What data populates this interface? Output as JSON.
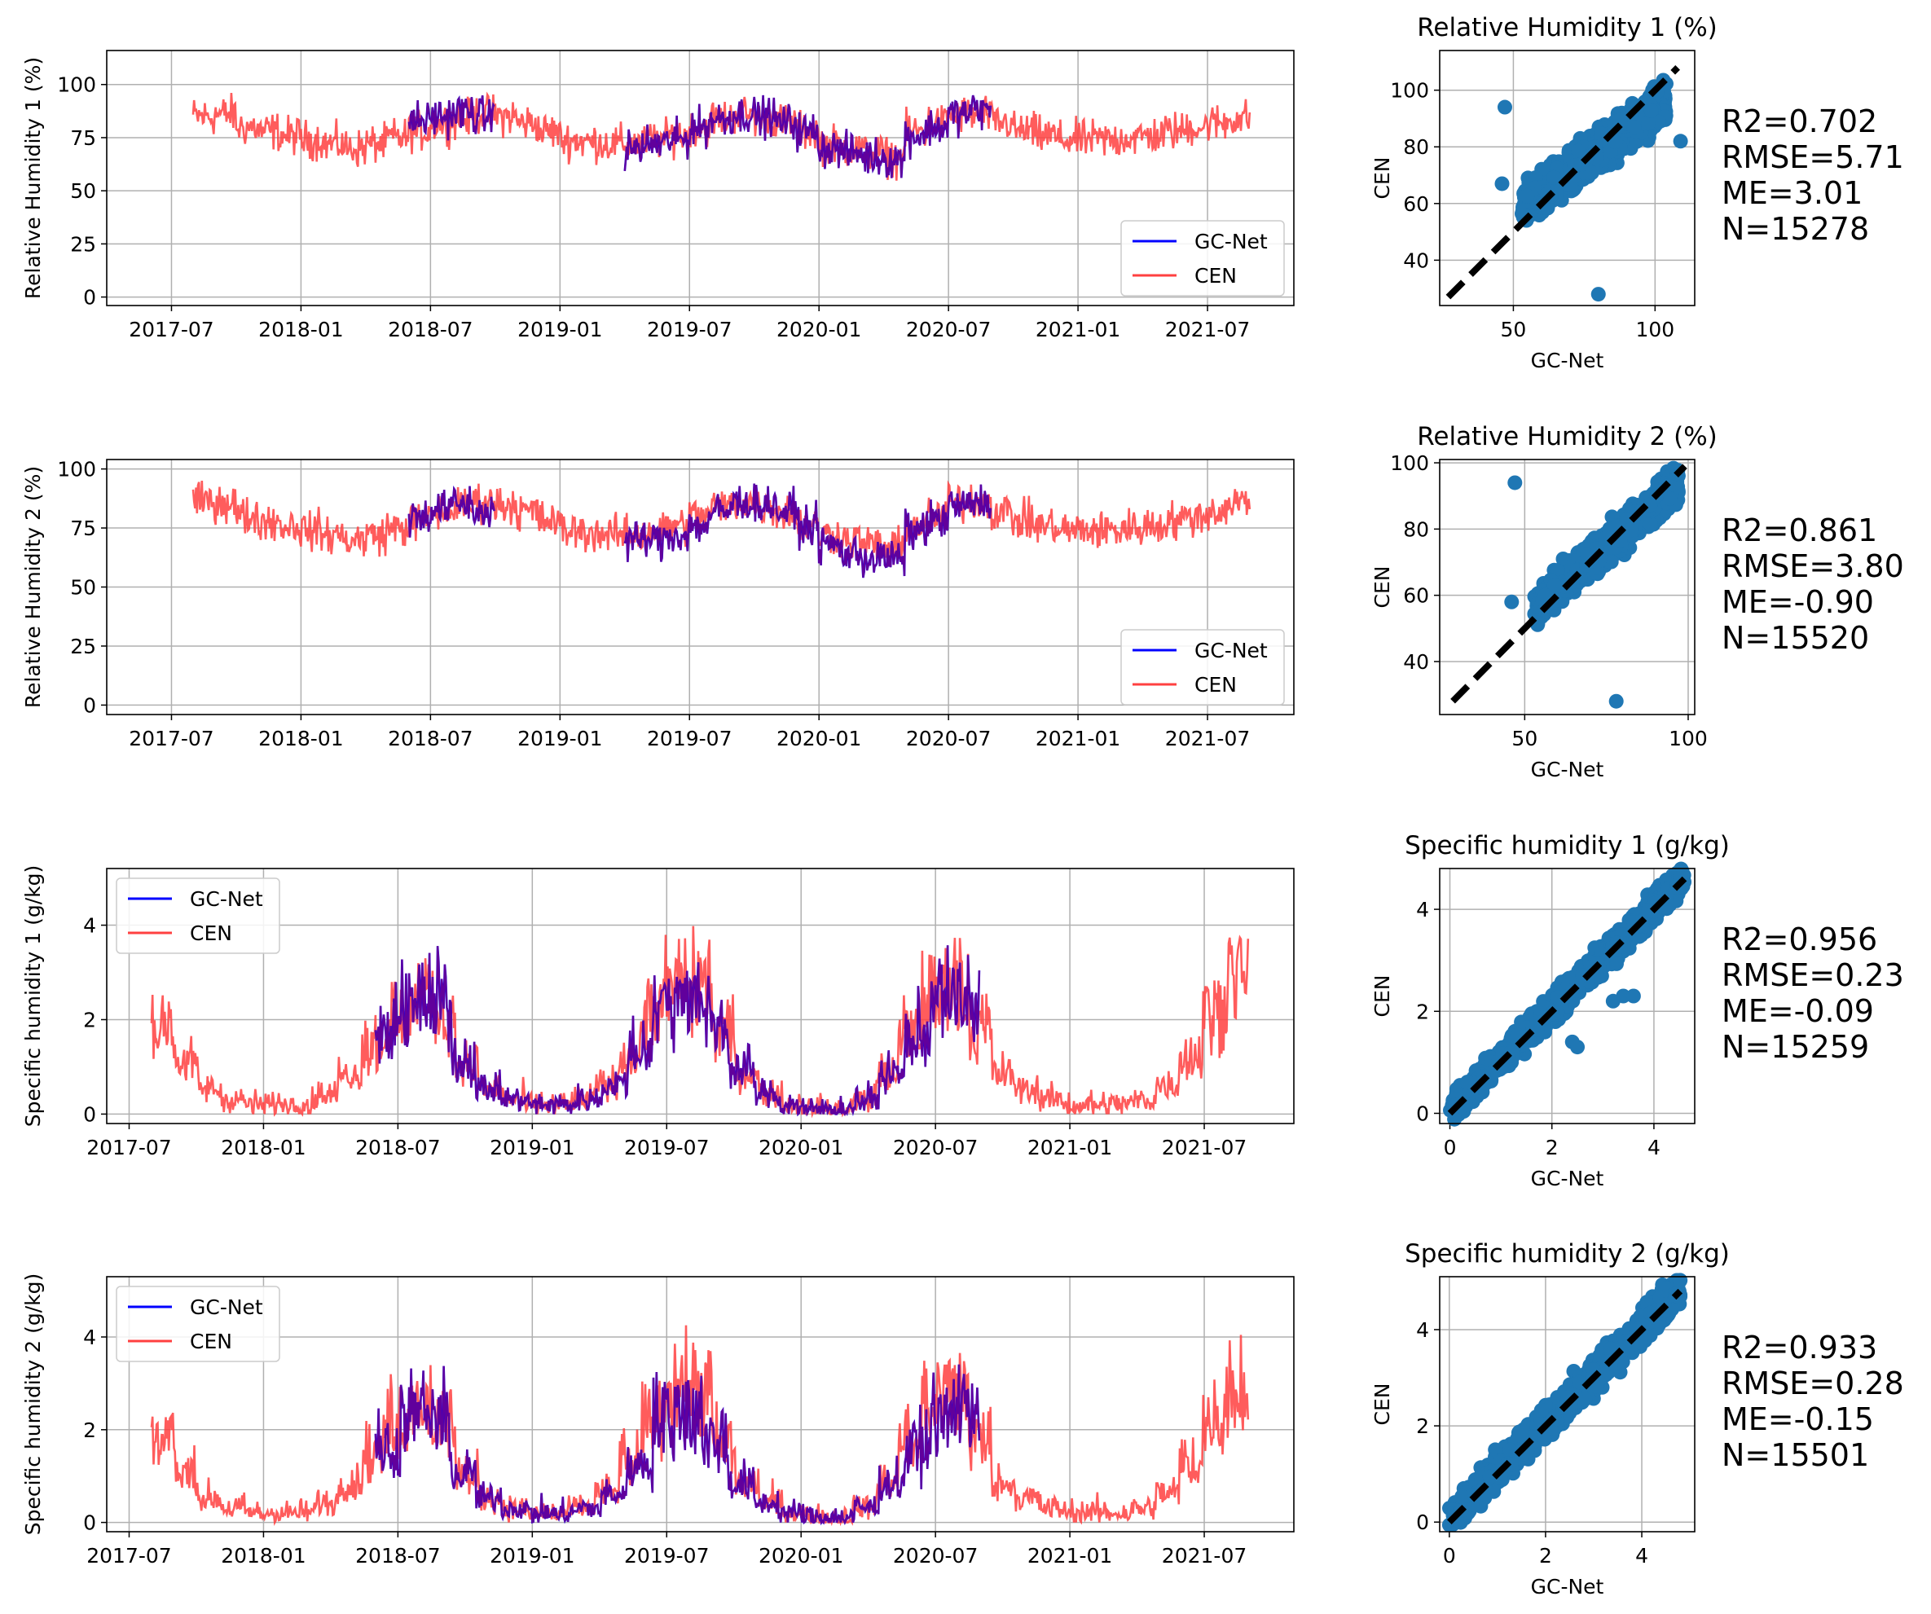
{
  "colors": {
    "gcnet": "#0000ff",
    "cen": "#ff4040",
    "overlap": "#b0004a",
    "scatter": "#1f77b4",
    "grid": "#b0b0b0"
  },
  "chart_data": [
    {
      "type": "line",
      "ylabel": "Relative Humidity 1 (%)",
      "ylim": [
        -4,
        116
      ],
      "yticks": [
        "0",
        "25",
        "50",
        "75",
        "100"
      ],
      "ytick_values": [
        0,
        25,
        50,
        75,
        100
      ],
      "xticks": [
        "2017-07",
        "2018-01",
        "2018-07",
        "2019-01",
        "2019-07",
        "2020-01",
        "2020-07",
        "2021-01",
        "2021-07"
      ],
      "xlim": [
        "2017-04",
        "2021-11"
      ],
      "legend": {
        "position": "lower-right",
        "entries": [
          "GC-Net",
          "CEN"
        ]
      },
      "series": [
        {
          "name": "GC-Net",
          "start": "2018-06",
          "end": "2020-08",
          "monthly_mean": [
            83,
            85,
            87,
            85,
            82,
            78,
            74,
            72,
            70,
            70,
            70,
            72,
            74,
            80,
            84,
            86,
            85,
            82,
            78,
            70,
            68,
            66,
            65,
            76,
            80,
            86,
            88
          ],
          "min": 47,
          "max": 110,
          "gaps": [
            [
              "2018-10",
              "2019-04"
            ]
          ]
        },
        {
          "name": "CEN",
          "start": "2017-08",
          "end": "2021-08",
          "monthly_mean": [
            85,
            86,
            80,
            78,
            76,
            74,
            72,
            70,
            72,
            75,
            78,
            82,
            84,
            86,
            85,
            82,
            78,
            74,
            73,
            72,
            72,
            74,
            76,
            80,
            84,
            86,
            84,
            82,
            78,
            72,
            70,
            68,
            66,
            78,
            82,
            86,
            86,
            82,
            78,
            76,
            74,
            74,
            74,
            75,
            76,
            78,
            80,
            82,
            84
          ],
          "min": 28,
          "max": 100
        }
      ]
    },
    {
      "type": "scatter",
      "title": "Relative Humidity 1 (%)",
      "xlabel": "GC-Net",
      "ylabel": "CEN",
      "xlim": [
        24,
        114
      ],
      "ylim": [
        24,
        114
      ],
      "xticks": [
        "50",
        "100"
      ],
      "xtick_values": [
        50,
        100
      ],
      "yticks": [
        "40",
        "60",
        "80",
        "100"
      ],
      "ytick_values": [
        40,
        60,
        80,
        100
      ],
      "stats": {
        "r2": "R2=0.702",
        "rmse": "RMSE=5.71",
        "me": "ME=3.01",
        "n": "N=15278"
      },
      "cloud": {
        "slope": 0.72,
        "intercept": 21,
        "spread": 6,
        "xmin": 53,
        "xmax": 104
      },
      "outliers": [
        [
          47,
          94
        ],
        [
          80,
          28
        ],
        [
          46,
          67
        ],
        [
          109,
          82
        ]
      ],
      "one_to_one": [
        27,
        108
      ]
    },
    {
      "type": "line",
      "ylabel": "Relative Humidity 2 (%)",
      "ylim": [
        -4,
        104
      ],
      "yticks": [
        "0",
        "25",
        "50",
        "75",
        "100"
      ],
      "ytick_values": [
        0,
        25,
        50,
        75,
        100
      ],
      "xticks": [
        "2017-07",
        "2018-01",
        "2018-07",
        "2019-01",
        "2019-07",
        "2020-01",
        "2020-07",
        "2021-01",
        "2021-07"
      ],
      "xlim": [
        "2017-04",
        "2021-11"
      ],
      "legend": {
        "position": "lower-right",
        "entries": [
          "GC-Net",
          "CEN"
        ]
      },
      "series": [
        {
          "name": "GC-Net",
          "start": "2018-06",
          "end": "2020-08",
          "monthly_mean": [
            80,
            83,
            85,
            82,
            78,
            76,
            74,
            72,
            70,
            70,
            70,
            70,
            72,
            76,
            82,
            86,
            85,
            82,
            76,
            68,
            64,
            62,
            62,
            74,
            78,
            84,
            86
          ],
          "min": 47,
          "max": 98,
          "gaps": [
            [
              "2018-10",
              "2019-04"
            ]
          ]
        },
        {
          "name": "CEN",
          "start": "2017-08",
          "end": "2021-08",
          "monthly_mean": [
            86,
            86,
            80,
            78,
            76,
            74,
            72,
            70,
            72,
            75,
            78,
            82,
            84,
            86,
            85,
            82,
            78,
            74,
            73,
            72,
            72,
            74,
            76,
            80,
            84,
            86,
            84,
            82,
            76,
            72,
            70,
            68,
            66,
            76,
            80,
            86,
            86,
            82,
            78,
            76,
            74,
            74,
            74,
            75,
            76,
            78,
            80,
            82,
            86
          ],
          "min": 28,
          "max": 98
        }
      ]
    },
    {
      "type": "scatter",
      "title": "Relative Humidity 2 (%)",
      "xlabel": "GC-Net",
      "ylabel": "CEN",
      "xlim": [
        24,
        102
      ],
      "ylim": [
        24,
        101
      ],
      "xticks": [
        "50",
        "100"
      ],
      "xtick_values": [
        50,
        100
      ],
      "yticks": [
        "40",
        "60",
        "80",
        "100"
      ],
      "ytick_values": [
        40,
        60,
        80,
        100
      ],
      "stats": {
        "r2": "R2=0.861",
        "rmse": "RMSE=3.80",
        "me": "ME=-0.90",
        "n": "N=15520"
      },
      "cloud": {
        "slope": 0.85,
        "intercept": 11,
        "spread": 4.5,
        "xmin": 53,
        "xmax": 97
      },
      "outliers": [
        [
          47,
          94
        ],
        [
          78,
          28
        ],
        [
          46,
          58
        ]
      ],
      "one_to_one": [
        28,
        99
      ]
    },
    {
      "type": "line",
      "ylabel": "Specific humidity 1 (g/kg)",
      "ylim": [
        -0.2,
        5.2
      ],
      "yticks": [
        "0",
        "2",
        "4"
      ],
      "ytick_values": [
        0,
        2,
        4
      ],
      "xticks": [
        "2017-07",
        "2018-01",
        "2018-07",
        "2019-01",
        "2019-07",
        "2020-01",
        "2020-07",
        "2021-01",
        "2021-07"
      ],
      "xlim": [
        "2017-06",
        "2021-11"
      ],
      "legend": {
        "position": "upper-left",
        "entries": [
          "GC-Net",
          "CEN"
        ]
      },
      "series": [
        {
          "name": "GC-Net",
          "start": "2018-06",
          "end": "2020-08",
          "monthly_mean": [
            1.6,
            2.3,
            2.2,
            1.1,
            0.5,
            0.3,
            0.2,
            0.2,
            0.3,
            0.6,
            1.3,
            2.2,
            2.4,
            1.8,
            0.9,
            0.4,
            0.2,
            0.1,
            0.1,
            0.3,
            0.8,
            1.6,
            2.3,
            2.4
          ],
          "min": 0,
          "max": 4.6
        },
        {
          "name": "CEN",
          "start": "2017-08",
          "end": "2021-08",
          "monthly_mean": [
            1.8,
            1.0,
            0.5,
            0.3,
            0.2,
            0.2,
            0.2,
            0.4,
            0.8,
            1.4,
            2.0,
            2.4,
            2.0,
            1.0,
            0.5,
            0.3,
            0.2,
            0.2,
            0.3,
            0.6,
            1.2,
            2.0,
            2.6,
            2.5,
            1.6,
            0.8,
            0.4,
            0.2,
            0.1,
            0.1,
            0.3,
            0.8,
            1.6,
            2.4,
            2.6,
            1.7,
            0.8,
            0.5,
            0.3,
            0.2,
            0.2,
            0.2,
            0.3,
            0.6,
            1.2,
            2.0,
            2.8
          ],
          "min": 0,
          "max": 5.0
        }
      ]
    },
    {
      "type": "scatter",
      "title": "Specific humidity 1 (g/kg)",
      "xlabel": "GC-Net",
      "ylabel": "CEN",
      "xlim": [
        -0.2,
        4.8
      ],
      "ylim": [
        -0.2,
        4.8
      ],
      "xticks": [
        "0",
        "2",
        "4"
      ],
      "xtick_values": [
        0,
        2,
        4
      ],
      "yticks": [
        "0",
        "2",
        "4"
      ],
      "ytick_values": [
        0,
        2,
        4
      ],
      "stats": {
        "r2": "R2=0.956",
        "rmse": "RMSE=0.23",
        "me": "ME=-0.09",
        "n": "N=15259"
      },
      "cloud": {
        "slope": 1.0,
        "intercept": 0.05,
        "spread": 0.25,
        "xmin": 0,
        "xmax": 4.6
      },
      "outliers": [
        [
          3.2,
          2.2
        ],
        [
          3.4,
          2.3
        ],
        [
          3.6,
          2.3
        ],
        [
          2.4,
          1.4
        ],
        [
          2.5,
          1.3
        ]
      ],
      "one_to_one": [
        0,
        4.6
      ]
    },
    {
      "type": "line",
      "ylabel": "Specific humidity 2 (g/kg)",
      "ylim": [
        -0.2,
        5.3
      ],
      "yticks": [
        "0",
        "2",
        "4"
      ],
      "ytick_values": [
        0,
        2,
        4
      ],
      "xticks": [
        "2017-07",
        "2018-01",
        "2018-07",
        "2019-01",
        "2019-07",
        "2020-01",
        "2020-07",
        "2021-01",
        "2021-07"
      ],
      "xlim": [
        "2017-06",
        "2021-11"
      ],
      "legend": {
        "position": "upper-left",
        "entries": [
          "GC-Net",
          "CEN"
        ]
      },
      "series": [
        {
          "name": "GC-Net",
          "start": "2018-06",
          "end": "2020-08",
          "monthly_mean": [
            1.5,
            2.2,
            2.1,
            1.0,
            0.5,
            0.3,
            0.2,
            0.2,
            0.3,
            0.6,
            1.2,
            2.1,
            2.3,
            1.7,
            0.8,
            0.4,
            0.2,
            0.1,
            0.1,
            0.3,
            0.8,
            1.5,
            2.2,
            2.3
          ],
          "min": 0,
          "max": 4.6
        },
        {
          "name": "CEN",
          "start": "2017-08",
          "end": "2021-08",
          "monthly_mean": [
            1.8,
            1.0,
            0.5,
            0.3,
            0.2,
            0.2,
            0.2,
            0.4,
            0.8,
            1.4,
            2.1,
            2.5,
            2.0,
            1.0,
            0.5,
            0.3,
            0.2,
            0.2,
            0.3,
            0.6,
            1.2,
            2.1,
            2.7,
            2.6,
            1.6,
            0.8,
            0.4,
            0.2,
            0.1,
            0.1,
            0.3,
            0.8,
            1.6,
            2.5,
            2.7,
            1.7,
            0.8,
            0.5,
            0.3,
            0.2,
            0.2,
            0.2,
            0.3,
            0.6,
            1.2,
            2.0,
            2.9
          ],
          "min": 0,
          "max": 5.0
        }
      ]
    },
    {
      "type": "scatter",
      "title": "Specific humidity 2 (g/kg)",
      "xlabel": "GC-Net",
      "ylabel": "CEN",
      "xlim": [
        -0.2,
        5.1
      ],
      "ylim": [
        -0.2,
        5.1
      ],
      "xticks": [
        "0",
        "2",
        "4"
      ],
      "xtick_values": [
        0,
        2,
        4
      ],
      "yticks": [
        "0",
        "2",
        "4"
      ],
      "ytick_values": [
        0,
        2,
        4
      ],
      "stats": {
        "r2": "R2=0.933",
        "rmse": "RMSE=0.28",
        "me": "ME=-0.15",
        "n": "N=15501"
      },
      "cloud": {
        "slope": 1.0,
        "intercept": 0.05,
        "spread": 0.3,
        "xmin": 0,
        "xmax": 4.8
      },
      "outliers": [],
      "one_to_one": [
        0,
        4.8
      ]
    }
  ]
}
